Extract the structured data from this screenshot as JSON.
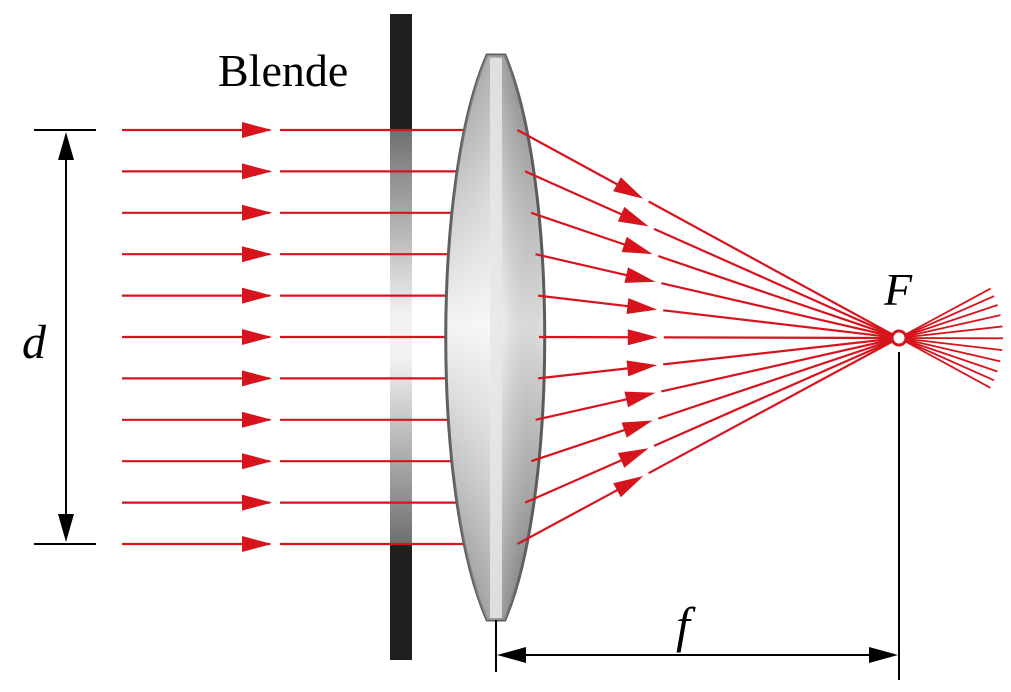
{
  "diagram": {
    "aperture_label": "Blende",
    "diameter_label": "d",
    "focal_point_label": "F",
    "focal_length_label": "f",
    "ray_count": 11,
    "colors": {
      "ray": "#d7141d",
      "aperture": "#1f1f1f",
      "lens_edge": "#5f5f5f",
      "dimension_line": "#000000",
      "focal_point_fill": "#ffffff"
    }
  }
}
